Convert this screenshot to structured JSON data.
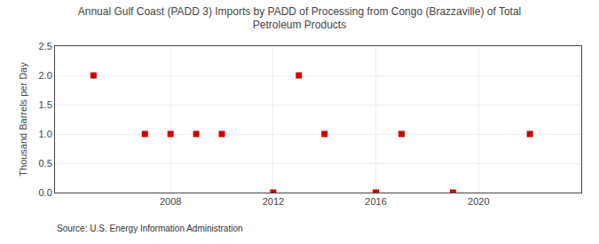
{
  "chart_data": {
    "type": "scatter",
    "title": "Annual Gulf Coast (PADD 3) Imports by PADD of Processing from Congo (Brazzaville) of Total\nPetroleum Products",
    "ylabel": "Thousand Barrels per Day",
    "source": "Source: U.S. Energy Information Administration",
    "x": [
      2005,
      2007,
      2008,
      2009,
      2010,
      2012,
      2013,
      2014,
      2016,
      2017,
      2019,
      2022
    ],
    "values": [
      2.0,
      1.0,
      1.0,
      1.0,
      1.0,
      0.0,
      2.0,
      1.0,
      0.0,
      1.0,
      0.0,
      1.0
    ],
    "color": "#cc0000",
    "marker": "square",
    "xlim": [
      2003.5,
      2024
    ],
    "ylim": [
      0.0,
      2.5
    ],
    "xticks": [
      2008,
      2012,
      2016,
      2020
    ],
    "yticks": [
      {
        "value": 0.0,
        "label": "0.0"
      },
      0.5,
      {
        "value": 1.0,
        "label": "1.0"
      },
      1.5,
      {
        "value": 2.0,
        "label": "2.0"
      },
      2.5
    ],
    "grid": true
  }
}
